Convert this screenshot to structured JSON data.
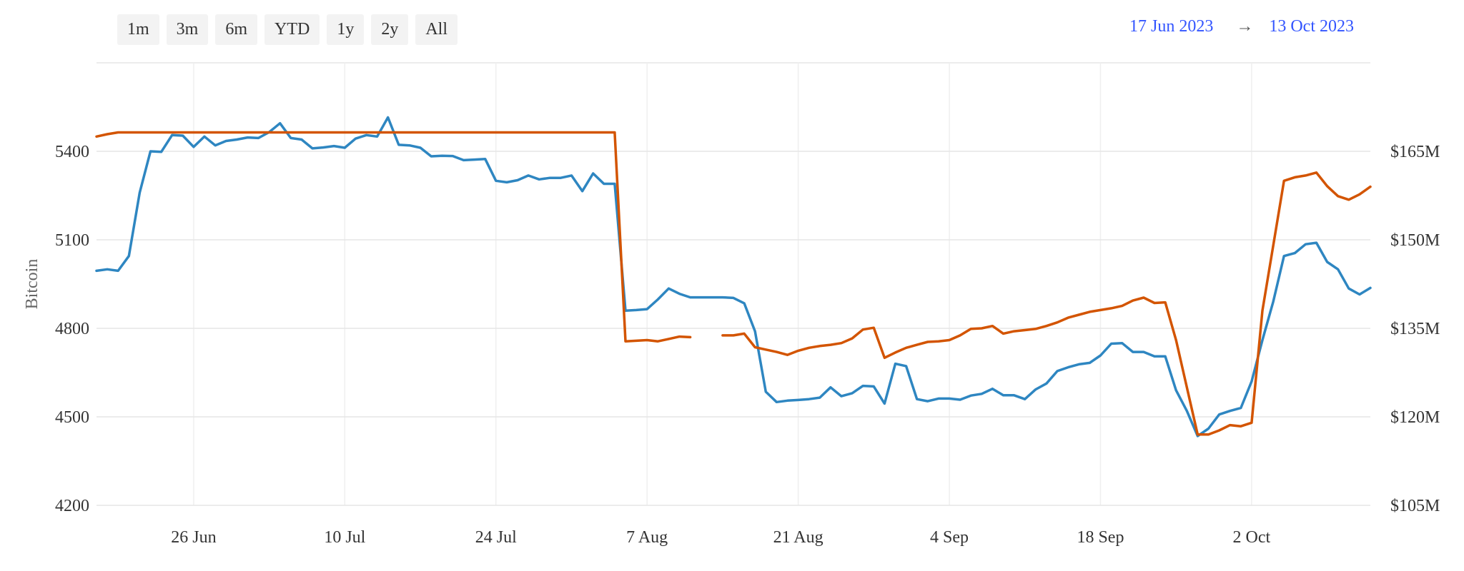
{
  "range_buttons": [
    "1m",
    "3m",
    "6m",
    "YTD",
    "1y",
    "2y",
    "All"
  ],
  "date_range": {
    "from": "17 Jun 2023",
    "arrow": "→",
    "to": "13 Oct 2023"
  },
  "colors": {
    "bitcoin_series": "#2e86c1",
    "usd_series": "#d35400",
    "grid": "#e6e6e6",
    "date_link": "#3355ff"
  },
  "chart_data": {
    "type": "line",
    "ylabel_left": "Bitcoin",
    "ylabel_right": "",
    "y_left": {
      "min": 4200,
      "max": 5700,
      "ticks": [
        4200,
        4500,
        4800,
        5100,
        5400
      ],
      "tick_labels": [
        "4200",
        "4500",
        "4800",
        "5100",
        "5400"
      ]
    },
    "y_right": {
      "min": 105,
      "max": 180,
      "ticks": [
        105,
        120,
        135,
        150,
        165
      ],
      "tick_labels": [
        "$105M",
        "$120M",
        "$135M",
        "$150M",
        "$165M"
      ]
    },
    "x_range": [
      "2023-06-17",
      "2023-10-13"
    ],
    "x_ticks": [
      {
        "date": "2023-06-26",
        "label": "26 Jun"
      },
      {
        "date": "2023-07-10",
        "label": "10 Jul"
      },
      {
        "date": "2023-07-24",
        "label": "24 Jul"
      },
      {
        "date": "2023-08-07",
        "label": "7 Aug"
      },
      {
        "date": "2023-08-21",
        "label": "21 Aug"
      },
      {
        "date": "2023-09-04",
        "label": "4 Sep"
      },
      {
        "date": "2023-09-18",
        "label": "18 Sep"
      },
      {
        "date": "2023-10-02",
        "label": "2 Oct"
      }
    ],
    "grid": true,
    "series": [
      {
        "axis": "left",
        "color": "#2e86c1",
        "values": [
          [
            "2023-06-17",
            4995
          ],
          [
            "2023-06-18",
            5000
          ],
          [
            "2023-06-19",
            4995
          ],
          [
            "2023-06-20",
            5045
          ],
          [
            "2023-06-21",
            5260
          ],
          [
            "2023-06-22",
            5400
          ],
          [
            "2023-06-23",
            5398
          ],
          [
            "2023-06-24",
            5455
          ],
          [
            "2023-06-25",
            5453
          ],
          [
            "2023-06-26",
            5415
          ],
          [
            "2023-06-27",
            5450
          ],
          [
            "2023-06-28",
            5420
          ],
          [
            "2023-06-29",
            5435
          ],
          [
            "2023-06-30",
            5440
          ],
          [
            "2023-07-01",
            5447
          ],
          [
            "2023-07-02",
            5445
          ],
          [
            "2023-07-03",
            5465
          ],
          [
            "2023-07-04",
            5495
          ],
          [
            "2023-07-05",
            5445
          ],
          [
            "2023-07-06",
            5440
          ],
          [
            "2023-07-07",
            5410
          ],
          [
            "2023-07-08",
            5413
          ],
          [
            "2023-07-09",
            5418
          ],
          [
            "2023-07-10",
            5412
          ],
          [
            "2023-07-11",
            5443
          ],
          [
            "2023-07-12",
            5455
          ],
          [
            "2023-07-13",
            5450
          ],
          [
            "2023-07-14",
            5515
          ],
          [
            "2023-07-15",
            5422
          ],
          [
            "2023-07-16",
            5420
          ],
          [
            "2023-07-17",
            5412
          ],
          [
            "2023-07-18",
            5383
          ],
          [
            "2023-07-19",
            5385
          ],
          [
            "2023-07-20",
            5384
          ],
          [
            "2023-07-21",
            5370
          ],
          [
            "2023-07-22",
            5372
          ],
          [
            "2023-07-23",
            5374
          ],
          [
            "2023-07-24",
            5300
          ],
          [
            "2023-07-25",
            5295
          ],
          [
            "2023-07-26",
            5302
          ],
          [
            "2023-07-27",
            5318
          ],
          [
            "2023-07-28",
            5305
          ],
          [
            "2023-07-29",
            5310
          ],
          [
            "2023-07-30",
            5310
          ],
          [
            "2023-07-31",
            5318
          ],
          [
            "2023-08-01",
            5265
          ],
          [
            "2023-08-02",
            5325
          ],
          [
            "2023-08-03",
            5290
          ],
          [
            "2023-08-04",
            5290
          ],
          [
            "2023-08-05",
            4860
          ],
          [
            "2023-08-06",
            4862
          ],
          [
            "2023-08-07",
            4865
          ],
          [
            "2023-08-08",
            4898
          ],
          [
            "2023-08-09",
            4935
          ],
          [
            "2023-08-10",
            4917
          ],
          [
            "2023-08-11",
            4905
          ],
          [
            "2023-08-12",
            4905
          ],
          [
            "2023-08-13",
            4905
          ],
          [
            "2023-08-14",
            4905
          ],
          [
            "2023-08-15",
            4903
          ],
          [
            "2023-08-16",
            4885
          ],
          [
            "2023-08-17",
            4790
          ],
          [
            "2023-08-18",
            4585
          ],
          [
            "2023-08-19",
            4550
          ],
          [
            "2023-08-20",
            4555
          ],
          [
            "2023-08-21",
            4557
          ],
          [
            "2023-08-22",
            4560
          ],
          [
            "2023-08-23",
            4565
          ],
          [
            "2023-08-24",
            4600
          ],
          [
            "2023-08-25",
            4570
          ],
          [
            "2023-08-26",
            4580
          ],
          [
            "2023-08-27",
            4605
          ],
          [
            "2023-08-28",
            4603
          ],
          [
            "2023-08-29",
            4545
          ],
          [
            "2023-08-30",
            4680
          ],
          [
            "2023-08-31",
            4672
          ],
          [
            "2023-09-01",
            4560
          ],
          [
            "2023-09-02",
            4553
          ],
          [
            "2023-09-03",
            4562
          ],
          [
            "2023-09-04",
            4562
          ],
          [
            "2023-09-05",
            4558
          ],
          [
            "2023-09-06",
            4572
          ],
          [
            "2023-09-07",
            4578
          ],
          [
            "2023-09-08",
            4595
          ],
          [
            "2023-09-09",
            4573
          ],
          [
            "2023-09-10",
            4573
          ],
          [
            "2023-09-11",
            4560
          ],
          [
            "2023-09-12",
            4593
          ],
          [
            "2023-09-13",
            4613
          ],
          [
            "2023-09-14",
            4655
          ],
          [
            "2023-09-15",
            4668
          ],
          [
            "2023-09-16",
            4678
          ],
          [
            "2023-09-17",
            4683
          ],
          [
            "2023-09-18",
            4708
          ],
          [
            "2023-09-19",
            4748
          ],
          [
            "2023-09-20",
            4750
          ],
          [
            "2023-09-21",
            4720
          ],
          [
            "2023-09-22",
            4720
          ],
          [
            "2023-09-23",
            4705
          ],
          [
            "2023-09-24",
            4705
          ],
          [
            "2023-09-25",
            4590
          ],
          [
            "2023-09-26",
            4520
          ],
          [
            "2023-09-27",
            4435
          ],
          [
            "2023-09-28",
            4460
          ],
          [
            "2023-09-29",
            4508
          ],
          [
            "2023-09-30",
            4520
          ],
          [
            "2023-10-01",
            4530
          ],
          [
            "2023-10-02",
            4620
          ],
          [
            "2023-10-03",
            4760
          ],
          [
            "2023-10-04",
            4890
          ],
          [
            "2023-10-05",
            5045
          ],
          [
            "2023-10-06",
            5055
          ],
          [
            "2023-10-07",
            5085
          ],
          [
            "2023-10-08",
            5090
          ],
          [
            "2023-10-09",
            5025
          ],
          [
            "2023-10-10",
            5000
          ],
          [
            "2023-10-11",
            4935
          ],
          [
            "2023-10-12",
            4915
          ],
          [
            "2023-10-13",
            4937
          ]
        ]
      },
      {
        "axis": "right",
        "color": "#d35400",
        "values": [
          [
            "2023-06-17",
            167.5
          ],
          [
            "2023-06-18",
            167.9
          ],
          [
            "2023-06-19",
            168.2
          ],
          [
            "2023-07-15",
            168.2
          ],
          [
            "2023-08-04",
            168.2
          ],
          [
            "2023-08-05",
            132.8
          ],
          [
            "2023-08-06",
            132.9
          ],
          [
            "2023-08-07",
            133.0
          ],
          [
            "2023-08-08",
            132.8
          ],
          [
            "2023-08-09",
            133.2
          ],
          [
            "2023-08-10",
            133.6
          ],
          [
            "2023-08-11",
            133.5
          ],
          null,
          [
            "2023-08-14",
            133.8
          ],
          [
            "2023-08-15",
            133.8
          ],
          [
            "2023-08-16",
            134.1
          ],
          [
            "2023-08-17",
            131.8
          ],
          [
            "2023-08-18",
            131.4
          ],
          [
            "2023-08-19",
            131.0
          ],
          [
            "2023-08-20",
            130.5
          ],
          [
            "2023-08-21",
            131.2
          ],
          [
            "2023-08-22",
            131.7
          ],
          [
            "2023-08-23",
            132.0
          ],
          [
            "2023-08-24",
            132.2
          ],
          [
            "2023-08-25",
            132.5
          ],
          [
            "2023-08-26",
            133.3
          ],
          [
            "2023-08-27",
            134.8
          ],
          [
            "2023-08-28",
            135.1
          ],
          [
            "2023-08-29",
            130.0
          ],
          [
            "2023-08-30",
            130.9
          ],
          [
            "2023-08-31",
            131.7
          ],
          [
            "2023-09-01",
            132.2
          ],
          [
            "2023-09-02",
            132.7
          ],
          [
            "2023-09-03",
            132.8
          ],
          [
            "2023-09-04",
            133.0
          ],
          [
            "2023-09-05",
            133.8
          ],
          [
            "2023-09-06",
            134.9
          ],
          [
            "2023-09-07",
            135.0
          ],
          [
            "2023-09-08",
            135.4
          ],
          [
            "2023-09-09",
            134.1
          ],
          [
            "2023-09-10",
            134.5
          ],
          [
            "2023-09-11",
            134.7
          ],
          [
            "2023-09-12",
            134.9
          ],
          [
            "2023-09-13",
            135.4
          ],
          [
            "2023-09-14",
            136.0
          ],
          [
            "2023-09-15",
            136.8
          ],
          [
            "2023-09-16",
            137.3
          ],
          [
            "2023-09-17",
            137.8
          ],
          [
            "2023-09-18",
            138.1
          ],
          [
            "2023-09-19",
            138.4
          ],
          [
            "2023-09-20",
            138.8
          ],
          [
            "2023-09-21",
            139.7
          ],
          [
            "2023-09-22",
            140.2
          ],
          [
            "2023-09-23",
            139.3
          ],
          [
            "2023-09-24",
            139.4
          ],
          [
            "2023-09-25",
            133.0
          ],
          [
            "2023-09-27",
            117.0
          ],
          [
            "2023-09-28",
            117.0
          ],
          [
            "2023-09-29",
            117.7
          ],
          [
            "2023-09-30",
            118.6
          ],
          [
            "2023-10-01",
            118.4
          ],
          [
            "2023-10-02",
            119.0
          ],
          [
            "2023-10-03",
            138.0
          ],
          [
            "2023-10-04",
            149.0
          ],
          [
            "2023-10-05",
            160.0
          ],
          [
            "2023-10-06",
            160.6
          ],
          [
            "2023-10-07",
            160.9
          ],
          [
            "2023-10-08",
            161.4
          ],
          [
            "2023-10-09",
            159.1
          ],
          [
            "2023-10-10",
            157.4
          ],
          [
            "2023-10-11",
            156.8
          ],
          [
            "2023-10-12",
            157.7
          ],
          [
            "2023-10-13",
            159.0
          ]
        ]
      }
    ]
  }
}
